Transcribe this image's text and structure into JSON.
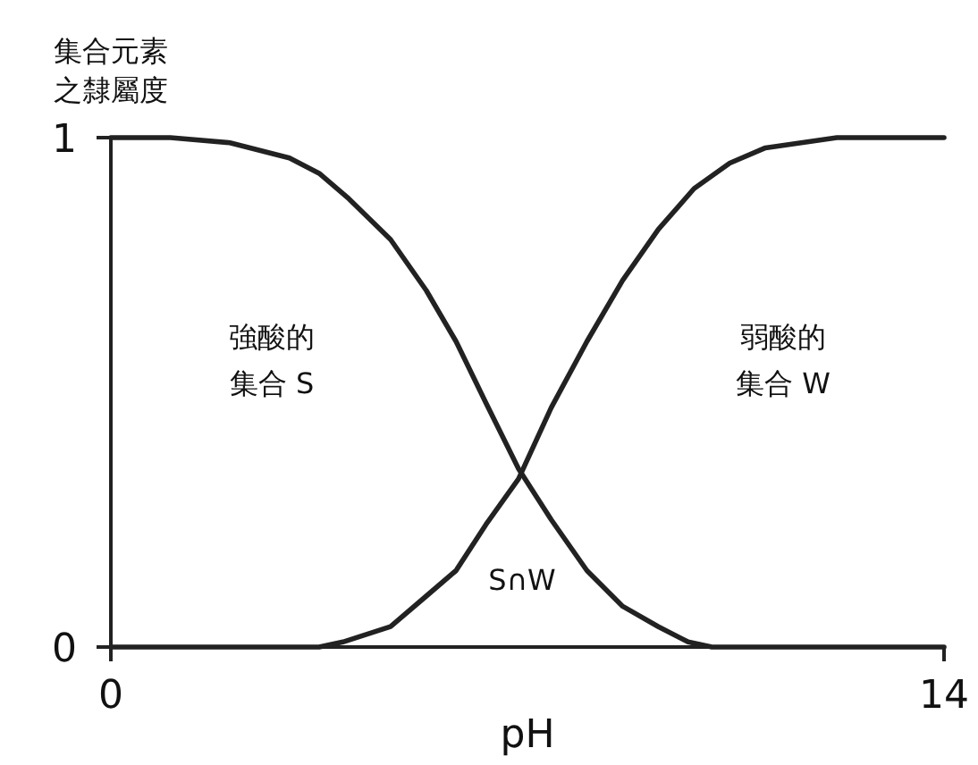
{
  "chart_data": {
    "type": "line",
    "xlabel": "pH",
    "ylabel": "集合元素之隸屬度",
    "xlim": [
      0,
      14
    ],
    "ylim": [
      0,
      1
    ],
    "xticks": [
      0,
      14
    ],
    "yticks": [
      0,
      1
    ],
    "grid": false,
    "marker": "none",
    "line_style": "solid",
    "series": [
      {
        "color": "#222222",
        "x": [
          0,
          1,
          2,
          3,
          3.5,
          4,
          4.7,
          5.3,
          5.8,
          6.3,
          6.85,
          7.4,
          8,
          8.6,
          9.2,
          9.7,
          10.1,
          14
        ],
        "values": [
          1,
          1,
          0.99,
          0.96,
          0.93,
          0.88,
          0.8,
          0.7,
          0.6,
          0.48,
          0.35,
          0.25,
          0.15,
          0.08,
          0.04,
          0.01,
          0,
          0
        ]
      },
      {
        "color": "#222222",
        "x": [
          0,
          3.5,
          3.9,
          4.7,
          5.3,
          5.8,
          6.3,
          6.85,
          7.4,
          8,
          8.6,
          9.2,
          9.8,
          10.4,
          11,
          11.6,
          12.2,
          14
        ],
        "values": [
          0,
          0,
          0.01,
          0.04,
          0.1,
          0.15,
          0.24,
          0.33,
          0.47,
          0.6,
          0.72,
          0.82,
          0.9,
          0.95,
          0.98,
          0.99,
          1,
          1
        ]
      }
    ],
    "annotations": [
      "強酸的",
      "集合 S",
      "弱酸的",
      "集合 W",
      "S∩W"
    ]
  }
}
